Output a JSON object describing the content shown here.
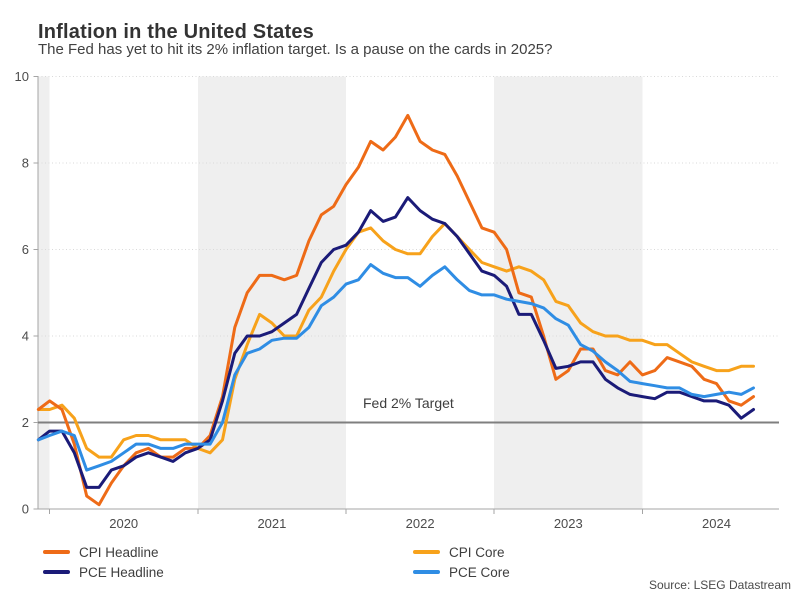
{
  "header": {
    "title": "Inflation in the United States",
    "subtitle": "The Fed has yet to hit its 2% inflation target. Is a pause on the cards in 2025?"
  },
  "chart_data": {
    "type": "line",
    "frequency": "monthly",
    "x_start": "2019-12",
    "x_end": "2024-10",
    "x_tick_labels": [
      "2020",
      "2021",
      "2022",
      "2023",
      "2024"
    ],
    "y_tick_labels": [
      "0",
      "2",
      "4",
      "6",
      "8",
      "10"
    ],
    "ylim": [
      0,
      10
    ],
    "gridline_values": [
      4,
      6,
      8,
      10
    ],
    "shaded_year_bands": [
      "2019",
      "2021",
      "2023"
    ],
    "legend_position": "bottom",
    "reference_line": {
      "label": "Fed 2% Target",
      "value": 2,
      "color": "#7f7f7f"
    },
    "style": {
      "band_color": "#efefef",
      "grid_color": "#d9d9d9",
      "axis_color": "#a5a5a5",
      "tick_label_color": "#4c4c4c"
    },
    "series": [
      {
        "name": "CPI Headline",
        "color": "#ee6b17",
        "values": [
          2.3,
          2.5,
          2.3,
          1.5,
          0.3,
          0.1,
          0.6,
          1.0,
          1.3,
          1.4,
          1.2,
          1.2,
          1.4,
          1.4,
          1.7,
          2.6,
          4.2,
          5.0,
          5.4,
          5.4,
          5.3,
          5.4,
          6.2,
          6.8,
          7.0,
          7.5,
          7.9,
          8.5,
          8.3,
          8.6,
          9.1,
          8.5,
          8.3,
          8.2,
          7.7,
          7.1,
          6.5,
          6.4,
          6.0,
          5.0,
          4.9,
          4.0,
          3.0,
          3.2,
          3.7,
          3.7,
          3.2,
          3.1,
          3.4,
          3.1,
          3.2,
          3.5,
          3.4,
          3.3,
          3.0,
          2.9,
          2.5,
          2.4,
          2.6
        ]
      },
      {
        "name": "PCE Headline",
        "color": "#1b1b78",
        "values": [
          1.6,
          1.8,
          1.8,
          1.3,
          0.5,
          0.5,
          0.9,
          1.0,
          1.2,
          1.3,
          1.2,
          1.1,
          1.3,
          1.4,
          1.6,
          2.5,
          3.6,
          4.0,
          4.0,
          4.1,
          4.3,
          4.5,
          5.1,
          5.7,
          6.0,
          6.1,
          6.4,
          6.9,
          6.65,
          6.75,
          7.2,
          6.9,
          6.7,
          6.6,
          6.3,
          5.9,
          5.5,
          5.4,
          5.15,
          4.5,
          4.5,
          3.9,
          3.25,
          3.3,
          3.4,
          3.4,
          3.0,
          2.8,
          2.65,
          2.6,
          2.55,
          2.7,
          2.7,
          2.6,
          2.5,
          2.5,
          2.4,
          2.1,
          2.3
        ]
      },
      {
        "name": "CPI Core",
        "color": "#f7a21b",
        "values": [
          2.3,
          2.3,
          2.4,
          2.1,
          1.4,
          1.2,
          1.2,
          1.6,
          1.7,
          1.7,
          1.6,
          1.6,
          1.6,
          1.4,
          1.3,
          1.6,
          3.0,
          3.8,
          4.5,
          4.3,
          4.0,
          4.0,
          4.6,
          4.9,
          5.5,
          6.0,
          6.4,
          6.5,
          6.2,
          6.0,
          5.9,
          5.9,
          6.3,
          6.6,
          6.3,
          6.0,
          5.7,
          5.6,
          5.5,
          5.6,
          5.5,
          5.3,
          4.8,
          4.7,
          4.3,
          4.1,
          4.0,
          4.0,
          3.9,
          3.9,
          3.8,
          3.8,
          3.6,
          3.4,
          3.3,
          3.2,
          3.2,
          3.3,
          3.3
        ]
      },
      {
        "name": "PCE Core",
        "color": "#2f8de4",
        "values": [
          1.6,
          1.7,
          1.8,
          1.7,
          0.9,
          1.0,
          1.1,
          1.3,
          1.5,
          1.5,
          1.4,
          1.4,
          1.5,
          1.5,
          1.5,
          2.0,
          3.1,
          3.6,
          3.7,
          3.9,
          3.95,
          3.95,
          4.2,
          4.7,
          4.9,
          5.2,
          5.3,
          5.65,
          5.45,
          5.35,
          5.35,
          5.15,
          5.4,
          5.6,
          5.3,
          5.05,
          4.95,
          4.95,
          4.85,
          4.8,
          4.75,
          4.65,
          4.4,
          4.25,
          3.8,
          3.65,
          3.4,
          3.2,
          2.95,
          2.9,
          2.85,
          2.8,
          2.8,
          2.65,
          2.6,
          2.65,
          2.7,
          2.65,
          2.8
        ]
      }
    ]
  },
  "footer": {
    "source": "Source: LSEG Datastream"
  }
}
